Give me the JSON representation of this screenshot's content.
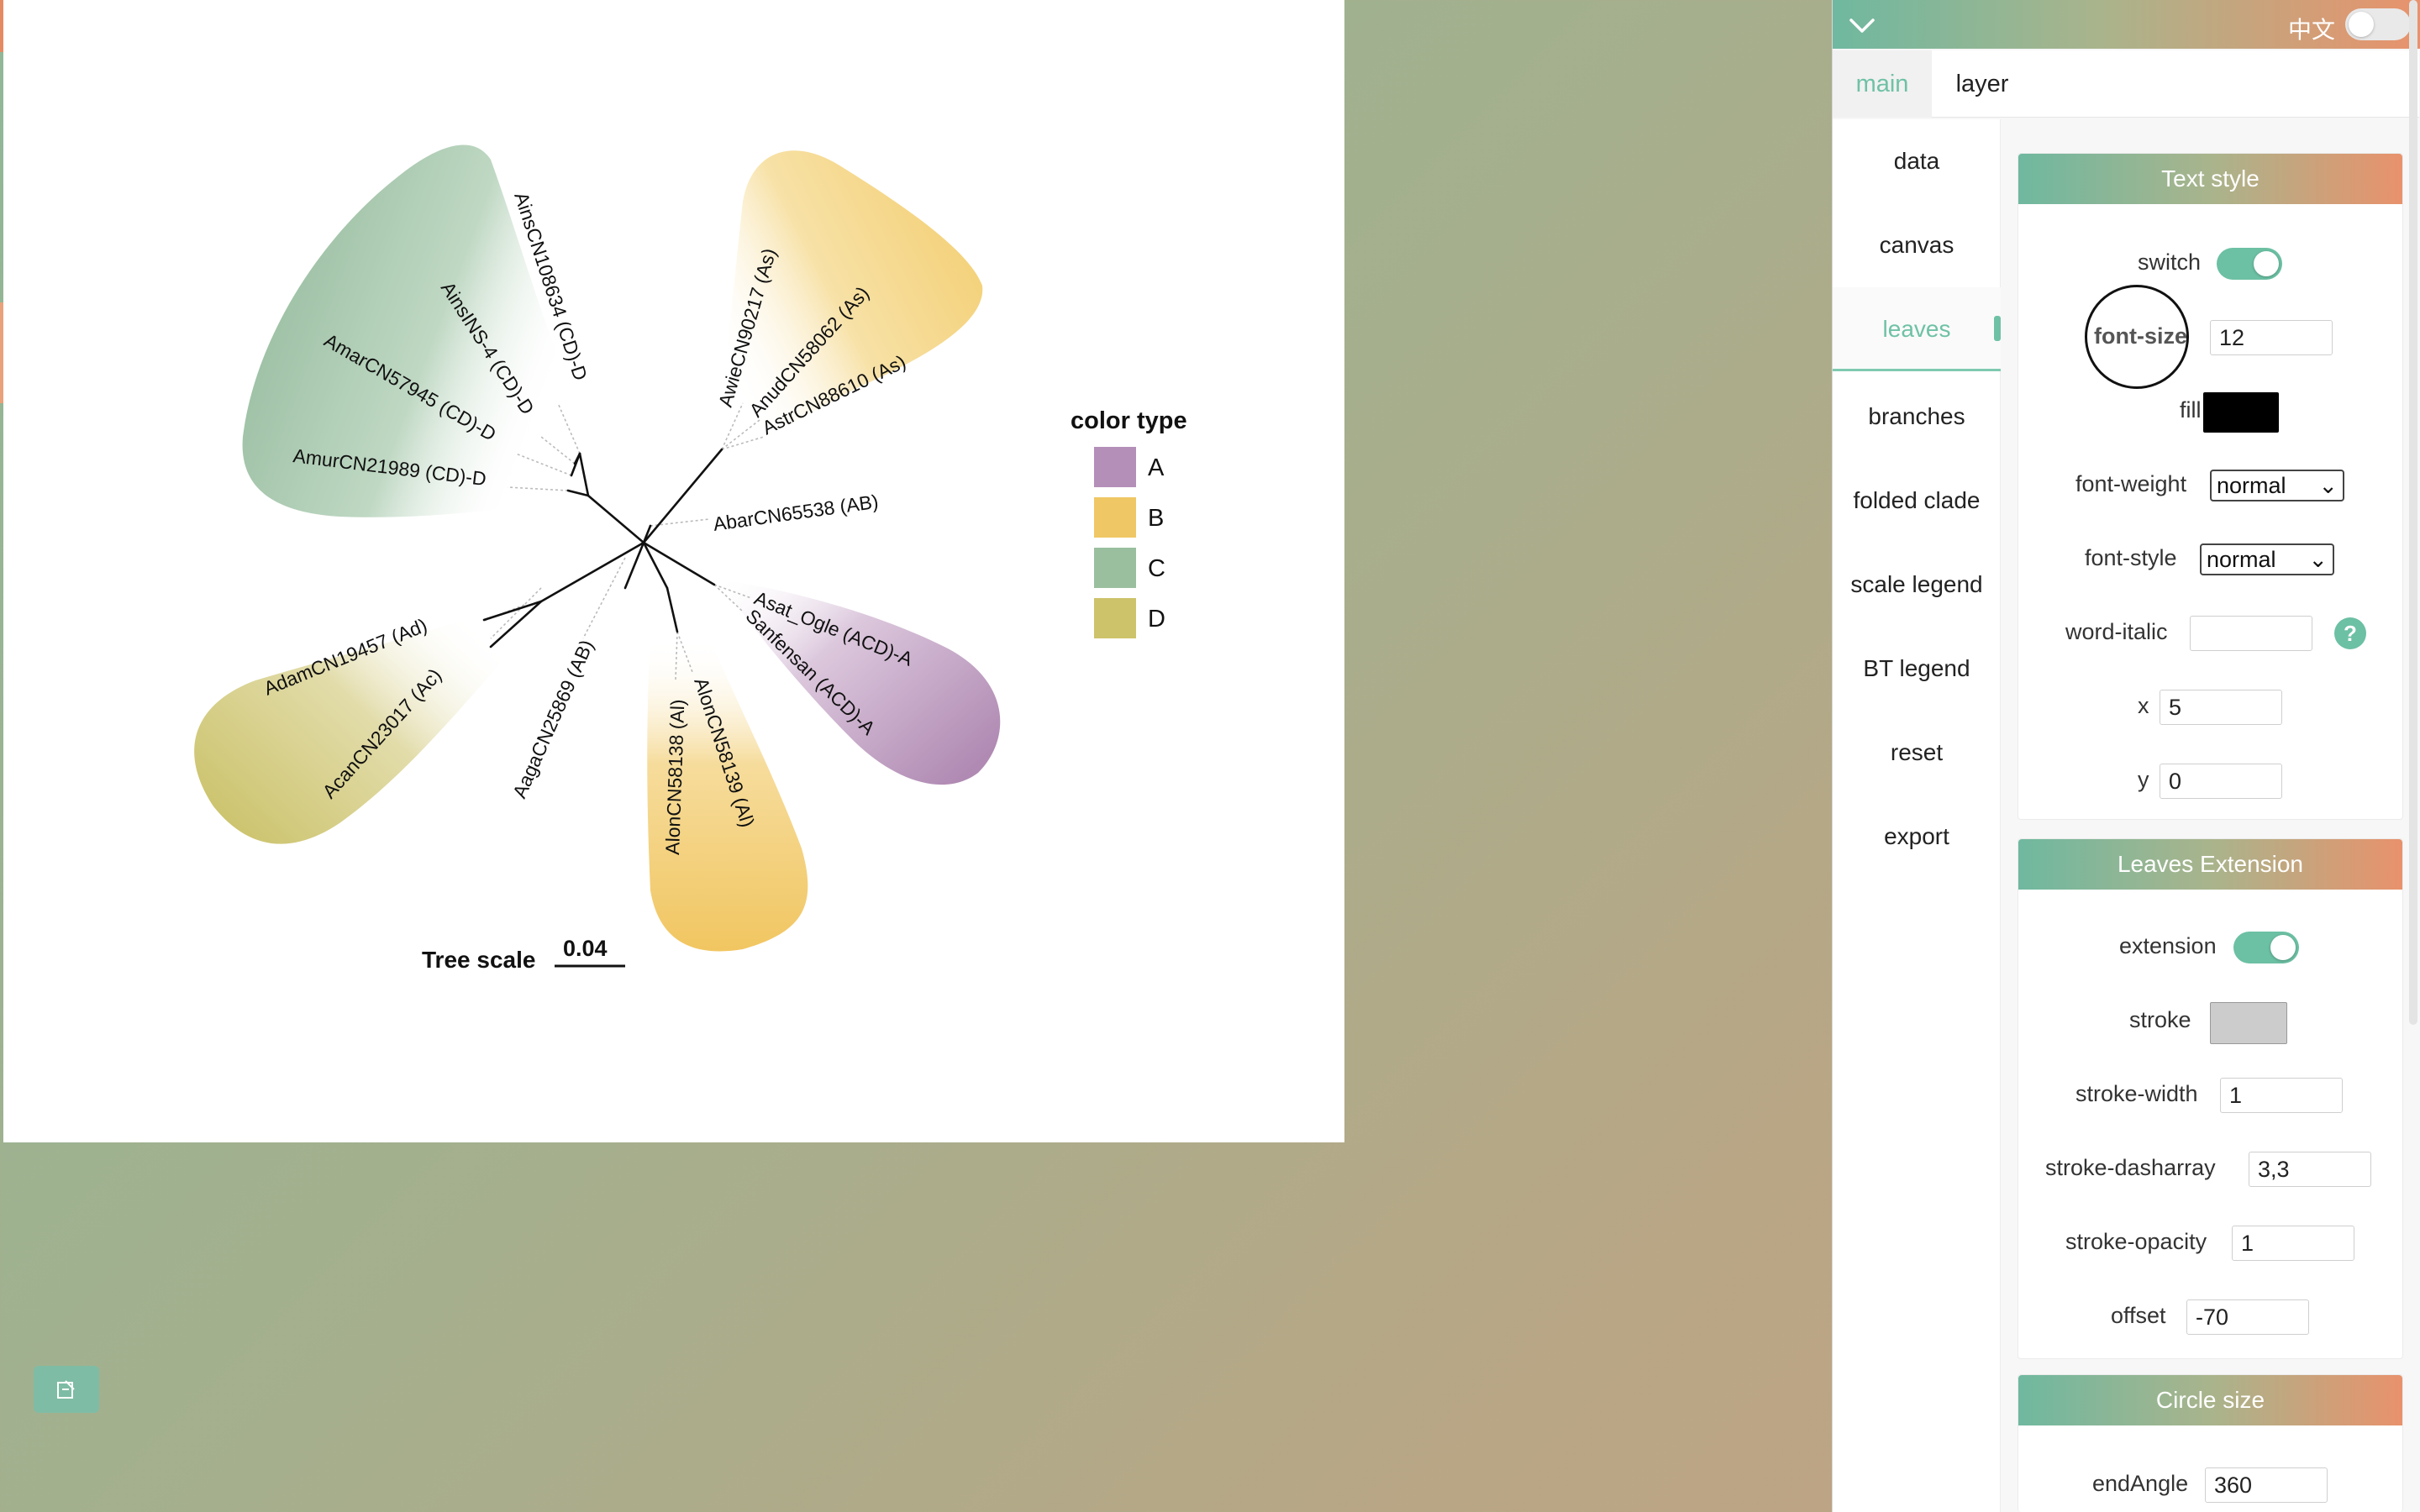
{
  "header": {
    "lang_label": "中文",
    "lang_toggle_on": false
  },
  "tabs": [
    {
      "label": "main"
    },
    {
      "label": "layer"
    }
  ],
  "nav": [
    {
      "label": "data"
    },
    {
      "label": "canvas"
    },
    {
      "label": "leaves"
    },
    {
      "label": "branches"
    },
    {
      "label": "folded clade"
    },
    {
      "label": "scale legend"
    },
    {
      "label": "BT legend"
    },
    {
      "label": "reset"
    },
    {
      "label": "export"
    }
  ],
  "text_style": {
    "title": "Text style",
    "switch_label": "switch",
    "switch_on": true,
    "font_size_label": "font-size",
    "font_size_value": "12",
    "fill_label": "fill",
    "fill_color": "#000000",
    "font_weight_label": "font-weight",
    "font_weight_value": "normal",
    "font_style_label": "font-style",
    "font_style_value": "normal",
    "word_italic_label": "word-italic",
    "word_italic_value": "",
    "x_label": "x",
    "x_value": "5",
    "y_label": "y",
    "y_value": "0"
  },
  "leaves_extension": {
    "title": "Leaves Extension",
    "extension_label": "extension",
    "extension_on": true,
    "stroke_label": "stroke",
    "stroke_color": "#cccccc",
    "stroke_width_label": "stroke-width",
    "stroke_width_value": "1",
    "stroke_dasharray_label": "stroke-dasharray",
    "stroke_dasharray_value": "3,3",
    "stroke_opacity_label": "stroke-opacity",
    "stroke_opacity_value": "1",
    "offset_label": "offset",
    "offset_value": "-70"
  },
  "circle_size": {
    "title": "Circle size",
    "end_angle_label": "endAngle",
    "end_angle_value": "360"
  },
  "tree": {
    "leaves": [
      "AinsCN108634 (CD)-D",
      "AinsINS-4 (CD)-D",
      "AmarCN57945 (CD)-D",
      "AmurCN21989 (CD)-D",
      "AwieCN90217 (As)",
      "AnudCN58062 (As)",
      "AstrCN88610 (As)",
      "AbarCN65538 (AB)",
      "Asat_Ogle (ACD)-A",
      "Sanfensan (ACD)-A",
      "AlonCN58139 (Al)",
      "AlonCN58138 (Al)",
      "AagaCN25869 (AB)",
      "AcanCN23017 (Ac)",
      "AdamCN19457 (Ad)"
    ],
    "legend": {
      "title": "color type",
      "items": [
        {
          "label": "A",
          "color": "#b48fb8"
        },
        {
          "label": "B",
          "color": "#f0c765"
        },
        {
          "label": "C",
          "color": "#9abf9f"
        },
        {
          "label": "D",
          "color": "#cdc36a"
        }
      ]
    },
    "scale": {
      "label": "Tree scale",
      "value": "0.04"
    }
  }
}
